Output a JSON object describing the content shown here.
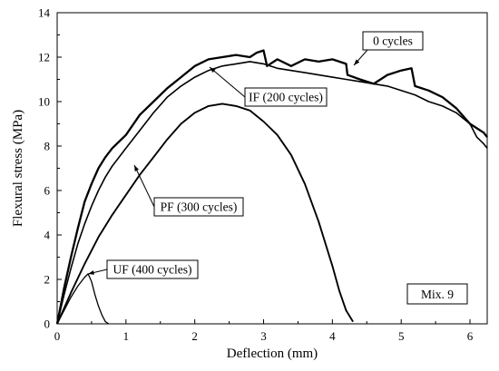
{
  "chart_data": {
    "type": "line",
    "xlabel": "Deflection (mm)",
    "ylabel": "Flexural stress (MPa)",
    "xlim": [
      0,
      6.25
    ],
    "ylim": [
      0,
      14
    ],
    "x_ticks": [
      0,
      1,
      2,
      3,
      4,
      5,
      6
    ],
    "y_ticks": [
      0,
      2,
      4,
      6,
      8,
      10,
      12,
      14
    ],
    "grid": false,
    "legend": "none",
    "box_label": "Mix. 9",
    "annotations": [
      {
        "text": "0 cycles",
        "series": 0
      },
      {
        "text": "IF (200 cycles)",
        "series": 1
      },
      {
        "text": "PF (300 cycles)",
        "series": 2
      },
      {
        "text": "UF (400 cycles)",
        "series": 3
      }
    ],
    "series": [
      {
        "color": "#000000",
        "x": [
          0,
          0.1,
          0.2,
          0.3,
          0.4,
          0.5,
          0.6,
          0.7,
          0.8,
          0.9,
          1.0,
          1.2,
          1.4,
          1.6,
          1.8,
          2.0,
          2.2,
          2.4,
          2.6,
          2.8,
          2.9,
          3.0,
          3.05,
          3.2,
          3.4,
          3.6,
          3.8,
          4.0,
          4.2,
          4.22,
          4.4,
          4.6,
          4.8,
          5.0,
          5.15,
          5.2,
          5.4,
          5.6,
          5.8,
          6.0,
          6.1,
          6.2,
          6.25
        ],
        "y": [
          0,
          1.6,
          3.0,
          4.3,
          5.5,
          6.3,
          7.0,
          7.5,
          7.9,
          8.2,
          8.5,
          9.4,
          10.0,
          10.6,
          11.1,
          11.6,
          11.9,
          12.0,
          12.1,
          12.0,
          12.2,
          12.3,
          11.6,
          11.9,
          11.6,
          11.9,
          11.8,
          11.9,
          11.7,
          11.2,
          11.0,
          10.8,
          11.2,
          11.4,
          11.5,
          10.7,
          10.5,
          10.2,
          9.7,
          9.0,
          8.8,
          8.6,
          8.4
        ]
      },
      {
        "color": "#000000",
        "x": [
          0,
          0.1,
          0.2,
          0.3,
          0.4,
          0.5,
          0.6,
          0.7,
          0.8,
          1.0,
          1.2,
          1.4,
          1.6,
          1.8,
          2.0,
          2.2,
          2.4,
          2.6,
          2.8,
          3.0,
          3.2,
          3.4,
          3.6,
          3.8,
          4.0,
          4.2,
          4.4,
          4.6,
          4.8,
          5.0,
          5.2,
          5.4,
          5.6,
          5.8,
          6.0,
          6.1,
          6.2,
          6.25
        ],
        "y": [
          0,
          1.3,
          2.5,
          3.6,
          4.5,
          5.3,
          6.0,
          6.6,
          7.1,
          7.9,
          8.7,
          9.5,
          10.2,
          10.7,
          11.1,
          11.4,
          11.6,
          11.7,
          11.8,
          11.7,
          11.5,
          11.4,
          11.3,
          11.2,
          11.1,
          11.0,
          10.9,
          10.8,
          10.7,
          10.5,
          10.3,
          10.0,
          9.8,
          9.5,
          9.0,
          8.4,
          8.1,
          7.9
        ]
      },
      {
        "color": "#000000",
        "x": [
          0,
          0.2,
          0.4,
          0.6,
          0.8,
          1.0,
          1.2,
          1.4,
          1.6,
          1.8,
          2.0,
          2.2,
          2.4,
          2.6,
          2.8,
          3.0,
          3.2,
          3.4,
          3.6,
          3.8,
          4.0,
          4.1,
          4.2,
          4.3
        ],
        "y": [
          0,
          1.4,
          2.7,
          3.9,
          4.9,
          5.8,
          6.7,
          7.5,
          8.3,
          9.0,
          9.5,
          9.8,
          9.9,
          9.8,
          9.6,
          9.1,
          8.5,
          7.6,
          6.3,
          4.6,
          2.6,
          1.5,
          0.6,
          0.1
        ]
      },
      {
        "color": "#000000",
        "x": [
          0,
          0.1,
          0.2,
          0.3,
          0.4,
          0.45,
          0.5,
          0.55,
          0.6,
          0.65,
          0.7,
          0.75
        ],
        "y": [
          0,
          0.6,
          1.2,
          1.7,
          2.1,
          2.25,
          1.9,
          1.3,
          0.8,
          0.4,
          0.1,
          0.0
        ]
      }
    ]
  }
}
